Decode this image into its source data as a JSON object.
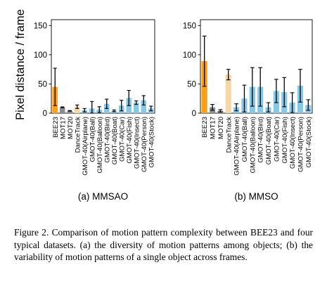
{
  "figure": {
    "ylabel": "Pixel distance / frame",
    "caption": "Figure 2. Comparison of motion pattern complexity between BEE23 and four typical datasets. (a) the diversity of motion patterns among objects; (b) the variability of motion patterns of a single object across frames."
  },
  "colors": {
    "bee23": "#ff9f0f",
    "mot": "#8a8d91",
    "dancetrack": "#f9d7a5",
    "gmot": "#86c8e8",
    "errorbar": "#000000"
  },
  "chart_data": [
    {
      "type": "bar",
      "title": "(a) MMSAO",
      "ylim": [
        0,
        160
      ],
      "yticks": [
        0,
        50,
        100,
        150
      ],
      "grid": false,
      "categories": [
        "BEE23",
        "MOT17",
        "MOT20",
        "DanceTrack",
        "GMOT-40(Airplane)",
        "GMOT-40(Ball)",
        "GMOT-40(Balloon)",
        "GMOT-40(Bird)",
        "GMOT-40(Boat)",
        "GMOT-40(Car)",
        "GMOT-40(Fish)",
        "GMOT-40(Insect)",
        "GMOT-40(Person)",
        "GMOT-40(Stock)"
      ],
      "values": [
        45,
        10,
        4,
        11,
        5,
        8,
        6,
        16,
        4,
        13,
        26,
        18,
        22,
        8
      ],
      "errors": [
        32,
        0.8,
        0.5,
        3,
        3,
        12,
        5,
        8,
        1.5,
        9,
        13,
        3,
        8,
        4
      ]
    },
    {
      "type": "bar",
      "title": "(b) MMSO",
      "ylim": [
        0,
        160
      ],
      "yticks": [
        0,
        50,
        100,
        150
      ],
      "grid": false,
      "categories": [
        "BEE23",
        "MOT17",
        "MOT20",
        "DanceTrack",
        "GMOT-40(Airplane)",
        "GMOT-40(Ball)",
        "GMOT-40(Balloon)",
        "GMOT-40(Bird)",
        "GMOT-40(Boat)",
        "GMOT-40(Car)",
        "GMOT-40(Fish)",
        "GMOT-40(Insect)",
        "GMOT-40(Person)",
        "GMOT-40(Stock)"
      ],
      "values": [
        89,
        10,
        4,
        66,
        10,
        25,
        45,
        45,
        10,
        38,
        36,
        18,
        47,
        14
      ],
      "errors": [
        43,
        5,
        2,
        9,
        6,
        23,
        33,
        33,
        8,
        20,
        25,
        17,
        28,
        9
      ]
    }
  ]
}
